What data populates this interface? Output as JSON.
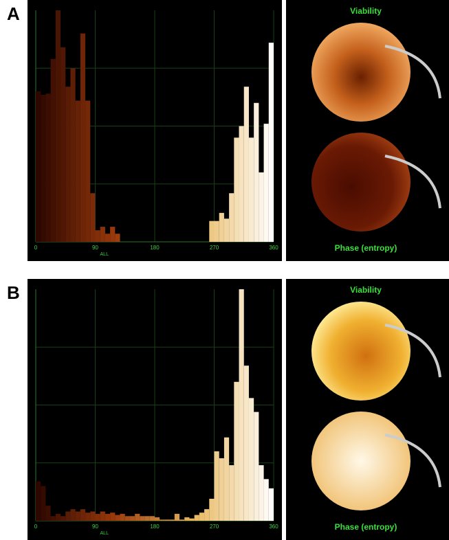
{
  "chart_data": [
    {
      "type": "histogram",
      "panel_label": "A",
      "xlabel": "ALL",
      "bins": [
        0,
        7.5,
        15,
        22.5,
        30,
        37.5,
        45,
        52.5,
        60,
        67.5,
        75,
        82.5,
        90,
        97.5,
        105,
        112.5,
        120,
        127.5,
        135,
        142.5,
        150,
        157.5,
        165,
        172.5,
        180,
        187.5,
        195,
        202.5,
        210,
        217.5,
        225,
        232.5,
        240,
        247.5,
        255,
        262.5,
        270,
        277.5,
        285,
        292.5,
        300,
        307.5,
        315,
        322.5,
        330,
        337.5,
        345,
        352.5,
        360
      ],
      "values": [
        65,
        63.5,
        64,
        79,
        100,
        84,
        67,
        75,
        61,
        90,
        61,
        21,
        5,
        6.5,
        3.5,
        6.5,
        3.5,
        0,
        0,
        0,
        0,
        0,
        0,
        0,
        0,
        0,
        0,
        0,
        0,
        0,
        0,
        0,
        0,
        0,
        0,
        9,
        9,
        12.5,
        10,
        21,
        45,
        50,
        67,
        45,
        60,
        30,
        51,
        86
      ],
      "xlim": [
        0,
        360
      ],
      "xticks": [
        0,
        90,
        180,
        270,
        360
      ],
      "ylim": [
        0,
        100
      ],
      "grid": true,
      "colormap": [
        "#2a0500",
        "#9a3a0c",
        "#e8b860",
        "#ffffff"
      ],
      "map_titles": [
        "Viability",
        "Phase (entropy)"
      ]
    },
    {
      "type": "histogram",
      "panel_label": "B",
      "xlabel": "ALL",
      "bins": [
        0,
        7.5,
        15,
        22.5,
        30,
        37.5,
        45,
        52.5,
        60,
        67.5,
        75,
        82.5,
        90,
        97.5,
        105,
        112.5,
        120,
        127.5,
        135,
        142.5,
        150,
        157.5,
        165,
        172.5,
        180,
        187.5,
        195,
        202.5,
        210,
        217.5,
        225,
        232.5,
        240,
        247.5,
        255,
        262.5,
        270,
        277.5,
        285,
        292.5,
        300,
        307.5,
        315,
        322.5,
        330,
        337.5,
        345,
        352.5,
        360
      ],
      "values": [
        17,
        15,
        6.5,
        2,
        3,
        2,
        4,
        5,
        4,
        5,
        3.5,
        4,
        3,
        4,
        3,
        3.5,
        2.5,
        3,
        2,
        2,
        3,
        2,
        2,
        2,
        1.5,
        0.5,
        0.5,
        0.5,
        3,
        0.5,
        1.5,
        1,
        2.5,
        3.5,
        5,
        9.5,
        30,
        27,
        36,
        24,
        60,
        100,
        67,
        53,
        47,
        24,
        18,
        14
      ],
      "xlim": [
        0,
        360
      ],
      "xticks": [
        0,
        90,
        180,
        270,
        360
      ],
      "ylim": [
        0,
        100
      ],
      "grid": true,
      "colormap": [
        "#2a0500",
        "#9a3a0c",
        "#e8b860",
        "#ffffff"
      ],
      "map_titles": [
        "Viability",
        "Phase (entropy)"
      ]
    }
  ]
}
